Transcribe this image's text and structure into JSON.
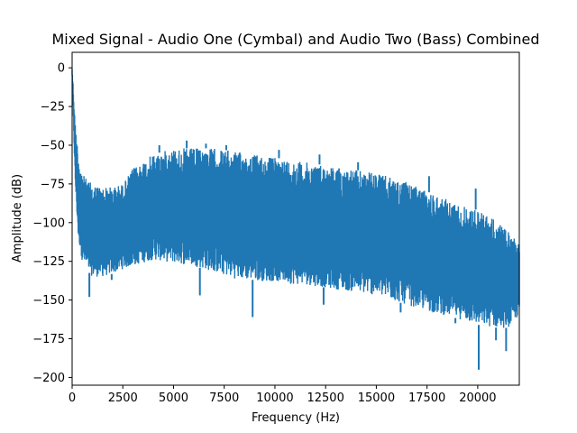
{
  "chart_data": {
    "type": "line",
    "title": "Mixed Signal - Audio One (Cymbal) and Audio Two (Bass) Combined",
    "xlabel": "Frequency (Hz)",
    "ylabel": "Amplitude (dB)",
    "xlim": [
      0,
      22050
    ],
    "ylim": [
      -205,
      10
    ],
    "xticks": [
      0,
      2500,
      5000,
      7500,
      10000,
      12500,
      15000,
      17500,
      20000
    ],
    "yticks": [
      0,
      -25,
      -50,
      -75,
      -100,
      -125,
      -150,
      -175,
      -200
    ],
    "grid": false,
    "legend": "none",
    "series": [
      {
        "color": "#1f77b4",
        "x": [
          0,
          50,
          150,
          300,
          500,
          700,
          1000,
          1500,
          2000,
          2500,
          3000,
          3500,
          4000,
          4500,
          5000,
          5500,
          6000,
          6500,
          7000,
          7500,
          8000,
          8500,
          9000,
          9500,
          10000,
          10500,
          11000,
          11500,
          12000,
          12500,
          13000,
          13500,
          14000,
          14500,
          15000,
          15500,
          16000,
          16500,
          17000,
          17500,
          18000,
          18500,
          19000,
          19500,
          20000,
          20500,
          21000,
          21500,
          22050
        ],
        "upper": [
          0,
          -10,
          -35,
          -55,
          -68,
          -72,
          -75,
          -77,
          -77,
          -75,
          -65,
          -60,
          -56,
          -54,
          -52,
          -52,
          -52,
          -52,
          -52,
          -53,
          -54,
          -55,
          -56,
          -57,
          -58,
          -59,
          -60,
          -61,
          -62,
          -63,
          -64,
          -65,
          -66,
          -67,
          -68,
          -70,
          -72,
          -74,
          -77,
          -80,
          -82,
          -85,
          -88,
          -90,
          -92,
          -95,
          -100,
          -106,
          -112
        ],
        "lower": [
          -5,
          -30,
          -75,
          -110,
          -125,
          -130,
          -135,
          -135,
          -133,
          -130,
          -128,
          -126,
          -124,
          -125,
          -126,
          -127,
          -128,
          -130,
          -132,
          -134,
          -136,
          -137,
          -137,
          -138,
          -138,
          -139,
          -140,
          -140,
          -141,
          -142,
          -143,
          -144,
          -145,
          -146,
          -147,
          -149,
          -151,
          -153,
          -155,
          -157,
          -159,
          -160,
          -162,
          -164,
          -166,
          -167,
          -168,
          -168,
          -160
        ],
        "dips": [
          {
            "x": 850,
            "y": -148
          },
          {
            "x": 1950,
            "y": -137
          },
          {
            "x": 6300,
            "y": -147
          },
          {
            "x": 8900,
            "y": -161
          },
          {
            "x": 12400,
            "y": -153
          },
          {
            "x": 16200,
            "y": -158
          },
          {
            "x": 18900,
            "y": -165
          },
          {
            "x": 20050,
            "y": -195
          },
          {
            "x": 20900,
            "y": -176
          },
          {
            "x": 21400,
            "y": -183
          }
        ],
        "peaks": [
          {
            "x": 4300,
            "y": -50
          },
          {
            "x": 5650,
            "y": -47
          },
          {
            "x": 6600,
            "y": -49
          },
          {
            "x": 7600,
            "y": -50
          },
          {
            "x": 10200,
            "y": -53
          },
          {
            "x": 12200,
            "y": -56
          },
          {
            "x": 14100,
            "y": -61
          },
          {
            "x": 17600,
            "y": -70
          },
          {
            "x": 19900,
            "y": -78
          }
        ]
      }
    ]
  }
}
